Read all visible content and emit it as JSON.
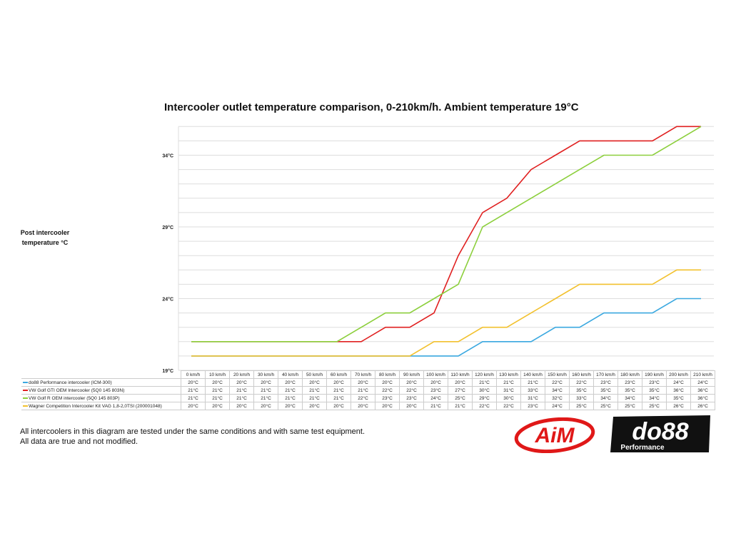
{
  "chart_data": {
    "type": "line",
    "title": "Intercooler outlet temperature comparison, 0-210km/h. Ambient temperature 19°C",
    "ylabel": "Post intercooler temperature °C",
    "ylim": [
      19,
      36
    ],
    "yticks": [
      "19°C",
      "24°C",
      "29°C",
      "34°C"
    ],
    "ytick_values": [
      19,
      24,
      29,
      34
    ],
    "grid": true,
    "categories": [
      "0 km/h",
      "10 km/h",
      "20 km/h",
      "30 km/h",
      "40 km/h",
      "50 km/h",
      "60 km/h",
      "70 km/h",
      "80 km/h",
      "90 km/h",
      "100 km/h",
      "110 km/h",
      "120 km/h",
      "130 km/h",
      "140 km/h",
      "150 km/h",
      "160 km/h",
      "170 km/h",
      "180 km/h",
      "190 km/h",
      "200 km/h",
      "210 km/h"
    ],
    "series": [
      {
        "name": "do88 Performance intercooler (ICM-300)",
        "color": "#3aa8e0",
        "values": [
          20,
          20,
          20,
          20,
          20,
          20,
          20,
          20,
          20,
          20,
          20,
          20,
          21,
          21,
          21,
          22,
          22,
          23,
          23,
          23,
          24,
          24
        ]
      },
      {
        "name": "VW Golf GTI OEM Intercooler (5Q0 145 803N)",
        "color": "#e02020",
        "values": [
          21,
          21,
          21,
          21,
          21,
          21,
          21,
          21,
          22,
          22,
          23,
          27,
          30,
          31,
          33,
          34,
          35,
          35,
          35,
          35,
          36,
          36
        ]
      },
      {
        "name": "VW Golf R OEM intercooler (5Q0 145 803P)",
        "color": "#8ccf3c",
        "values": [
          21,
          21,
          21,
          21,
          21,
          21,
          21,
          22,
          23,
          23,
          24,
          25,
          29,
          30,
          31,
          32,
          33,
          34,
          34,
          34,
          35,
          36
        ]
      },
      {
        "name": "Wagner Competition Intercooler Kit VAG 1,8-2,0TSI (200001048)",
        "color": "#f2c12e",
        "values": [
          20,
          20,
          20,
          20,
          20,
          20,
          20,
          20,
          20,
          20,
          21,
          21,
          22,
          22,
          23,
          24,
          25,
          25,
          25,
          25,
          26,
          26
        ]
      }
    ]
  },
  "note": [
    "All intercoolers in this diagram are tested under the same conditions and with same test equipment.",
    "All data are true and not modified."
  ],
  "logos": {
    "aim": "AiM",
    "do88": "do88",
    "do88_sub": "Performance"
  }
}
